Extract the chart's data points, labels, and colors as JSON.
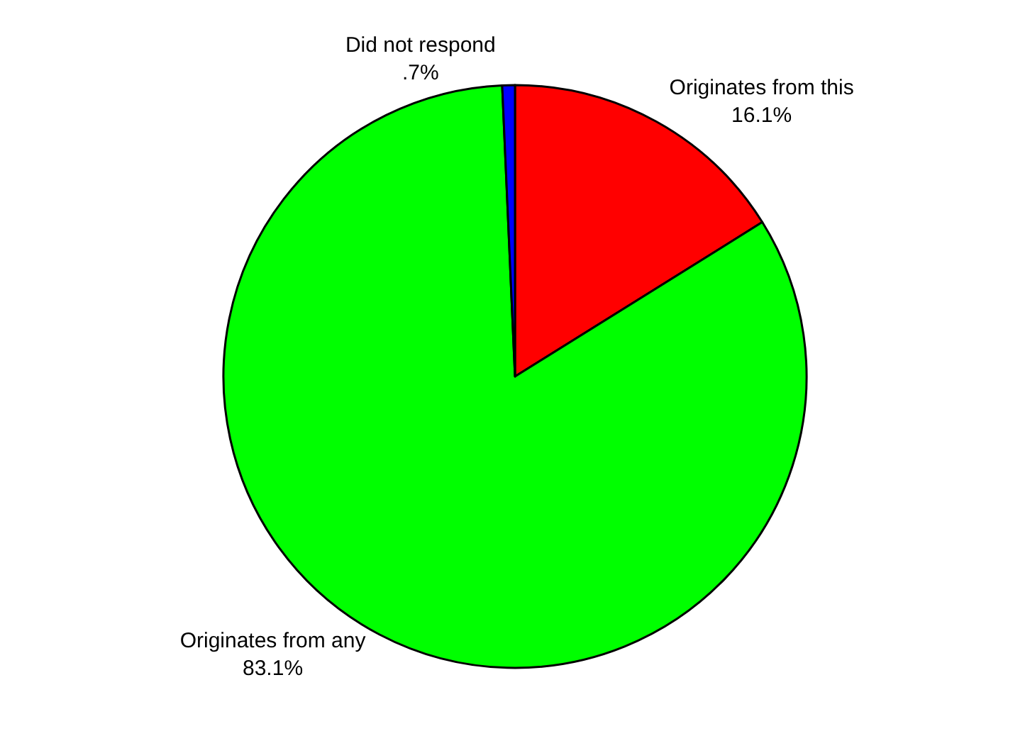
{
  "chart_data": {
    "type": "pie",
    "categories": [
      "Originates from this",
      "Originates from any",
      "Did not respond"
    ],
    "values": [
      16.1,
      83.1,
      0.7
    ],
    "value_labels": [
      "16.1%",
      "83.1%",
      ".7%"
    ],
    "colors": [
      "#ff0000",
      "#00ff00",
      "#0000ff"
    ],
    "legend": false
  }
}
